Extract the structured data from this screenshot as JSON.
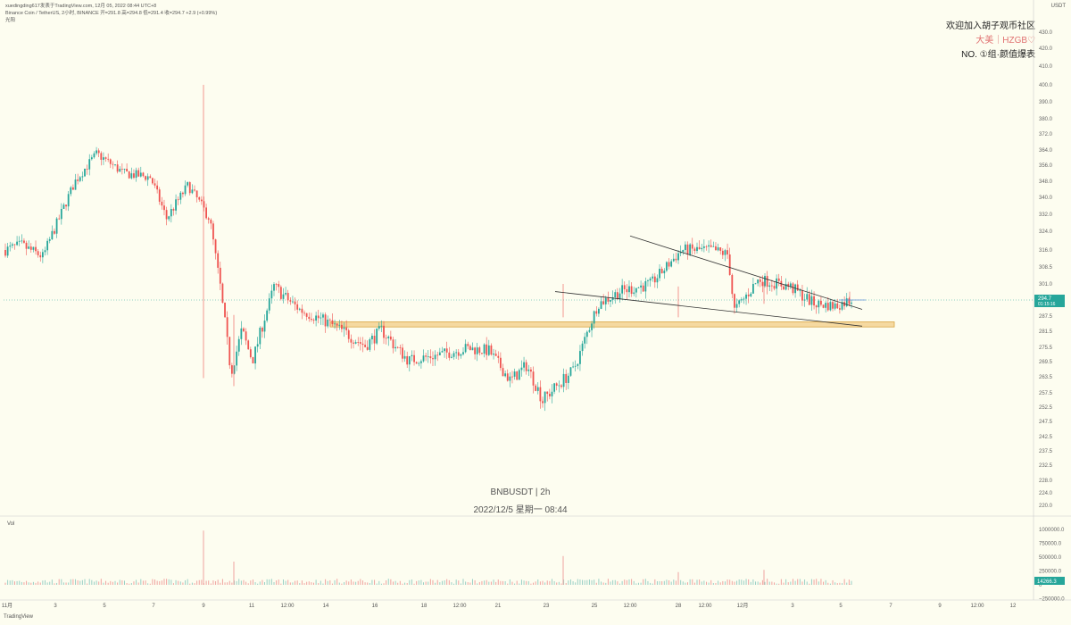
{
  "header": {
    "line1": "xuedingding617发表于TradingView.com,  12月 05, 2022 08:44 UTC+8",
    "line2": "Binance Coin / TetherUS, 2小时, BINANCE  开=291.8  高=294.8  低=291.4  收=294.7  +2.9 (+0.99%)",
    "line3": "光阳"
  },
  "axis_unit": "USDT",
  "promo": {
    "line1": "欢迎加入胡子观币社区",
    "line2": "大美｜HZGB♡",
    "line3": "NO. ①组·颜值爆表"
  },
  "watermark": {
    "symbol": "BNBUSDT | 2h",
    "datetime": "2022/12/5 星期一 08:44"
  },
  "volume_label": "Vol",
  "branding": "TradingView",
  "last_price_tag": {
    "price": "294.7",
    "countdown": "01:15:16"
  },
  "last_volume_tag": "14266.3",
  "colors": {
    "up": "#26a69a",
    "down": "#ef5350",
    "band": "#f5d9a0",
    "band_edge": "#d9a441",
    "background": "#fdfdf0",
    "price_tag": "#26a69a",
    "volume_tag": "#26a69a"
  },
  "chart_data": {
    "type": "candlestick",
    "symbol": "BNBUSDT",
    "interval": "2h",
    "y_ticks": [
      "430.0",
      "420.0",
      "410.0",
      "400.0",
      "390.0",
      "380.0",
      "372.0",
      "364.0",
      "356.0",
      "348.0",
      "340.0",
      "332.0",
      "324.0",
      "316.0",
      "308.5",
      "301.0",
      "294.7",
      "287.5",
      "281.5",
      "275.5",
      "269.5",
      "263.5",
      "257.5",
      "252.5",
      "247.5",
      "242.5",
      "237.5",
      "232.5",
      "228.0",
      "224.0",
      "220.0"
    ],
    "x_ticks": [
      "11月",
      "3",
      "5",
      "7",
      "9",
      "11",
      "12:00",
      "14",
      "16",
      "18",
      "12:00",
      "21",
      "23",
      "25",
      "12:00",
      "28",
      "12:00",
      "12月",
      "3",
      "5",
      "7",
      "9",
      "12:00",
      "12"
    ],
    "volume_ticks": [
      "1000000.0",
      "750000.0",
      "500000.0",
      "250000.0",
      "0",
      "−250000.0"
    ],
    "anchors": [
      {
        "x": 0,
        "y": 316
      },
      {
        "x": 0.05,
        "y": 318
      },
      {
        "x": 0.08,
        "y": 312
      },
      {
        "x": 0.1,
        "y": 330
      },
      {
        "x": 0.13,
        "y": 348
      },
      {
        "x": 0.17,
        "y": 362
      },
      {
        "x": 0.22,
        "y": 352
      },
      {
        "x": 0.27,
        "y": 350
      },
      {
        "x": 0.3,
        "y": 330
      },
      {
        "x": 0.34,
        "y": 345
      },
      {
        "x": 0.36,
        "y": 336
      },
      {
        "x": 0.39,
        "y": 330
      },
      {
        "x": 0.41,
        "y": 303
      },
      {
        "x": 0.43,
        "y": 265
      },
      {
        "x": 0.44,
        "y": 282
      },
      {
        "x": 0.46,
        "y": 271
      },
      {
        "x": 0.49,
        "y": 300
      },
      {
        "x": 0.53,
        "y": 292
      },
      {
        "x": 0.56,
        "y": 282
      },
      {
        "x": 0.59,
        "y": 285
      },
      {
        "x": 0.62,
        "y": 280
      },
      {
        "x": 0.65,
        "y": 282
      },
      {
        "x": 0.67,
        "y": 276
      },
      {
        "x": 0.7,
        "y": 280
      },
      {
        "x": 0.74,
        "y": 270
      },
      {
        "x": 0.79,
        "y": 272
      },
      {
        "x": 0.85,
        "y": 275
      },
      {
        "x": 0.9,
        "y": 274
      },
      {
        "x": 0.94,
        "y": 262
      },
      {
        "x": 0.96,
        "y": 268
      },
      {
        "x": 1.0,
        "y": 255
      }
    ],
    "segments": [
      {
        "points": [
          [
            0,
            316
          ],
          [
            0.03,
            318
          ],
          [
            0.07,
            313
          ],
          [
            0.1,
            330
          ],
          [
            0.13,
            348
          ],
          [
            0.17,
            362
          ],
          [
            0.22,
            352
          ],
          [
            0.27,
            350
          ],
          [
            0.3,
            330
          ],
          [
            0.34,
            346
          ],
          [
            0.38,
            330
          ],
          [
            0.4,
            300
          ],
          [
            0.42,
            265
          ],
          [
            0.44,
            282
          ],
          [
            0.46,
            270
          ],
          [
            0.5,
            300
          ],
          [
            0.55,
            290
          ],
          [
            0.6,
            285
          ],
          [
            0.64,
            280
          ],
          [
            0.67,
            276
          ],
          [
            0.7,
            282
          ],
          [
            0.75,
            270
          ],
          [
            0.8,
            272
          ],
          [
            0.86,
            275
          ],
          [
            0.9,
            274
          ],
          [
            0.94,
            262
          ],
          [
            0.97,
            268
          ],
          [
            1,
            255
          ]
        ],
        "from": "11月",
        "to": "23"
      },
      {
        "points": [
          [
            0,
            255
          ],
          [
            0.1,
            266
          ],
          [
            0.18,
            293
          ],
          [
            0.25,
            298
          ],
          [
            0.35,
            301
          ],
          [
            0.45,
            316
          ],
          [
            0.55,
            316
          ],
          [
            0.6,
            314
          ],
          [
            0.62,
            290
          ],
          [
            0.7,
            303
          ],
          [
            0.8,
            300
          ],
          [
            0.88,
            293
          ],
          [
            0.95,
            292
          ],
          [
            1,
            295
          ]
        ],
        "from": "23",
        "to": "12月5"
      }
    ]
  }
}
